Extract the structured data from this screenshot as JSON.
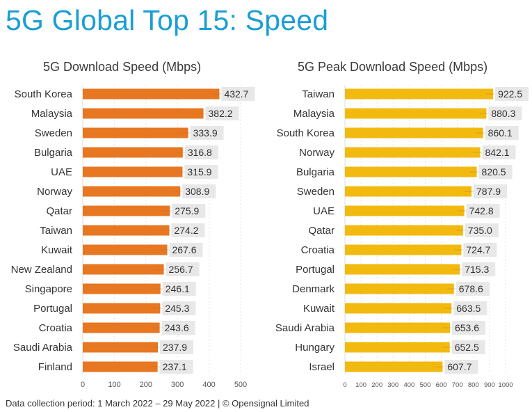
{
  "title": "5G Global Top 15: Speed",
  "footer": "Data collection period: 1 March 2022 – 29 May 2022 |  © Opensignal Limited",
  "colors": {
    "title": "#1a9ed4",
    "download_bar": "#e87722",
    "peak_bar": "#f2b90f",
    "label_bg": "#e8e8e8"
  },
  "chart_data": [
    {
      "type": "bar",
      "orientation": "horizontal",
      "title": "5G Download Speed (Mbps)",
      "xlabel": "",
      "ylabel": "",
      "xlim": [
        0,
        500
      ],
      "xticks": [
        0,
        100,
        200,
        300,
        400,
        500
      ],
      "grid": true,
      "categories": [
        "South Korea",
        "Malaysia",
        "Sweden",
        "Bulgaria",
        "UAE",
        "Norway",
        "Qatar",
        "Taiwan",
        "Kuwait",
        "New Zealand",
        "Singapore",
        "Portugal",
        "Croatia",
        "Saudi Arabia",
        "Finland"
      ],
      "values": [
        432.7,
        382.2,
        333.9,
        316.8,
        315.9,
        308.9,
        275.9,
        274.2,
        267.6,
        256.7,
        246.1,
        245.3,
        243.6,
        237.9,
        237.1
      ],
      "labels": [
        "432.7",
        "382.2",
        "333.9",
        "316.8",
        "315.9",
        "308.9",
        "275.9",
        "274.2",
        "267.6",
        "256.7",
        "246.1",
        "245.3",
        "243.6",
        "237.9",
        "237.1"
      ],
      "color": "#e87722"
    },
    {
      "type": "bar",
      "orientation": "horizontal",
      "title": "5G Peak Download Speed (Mbps)",
      "xlabel": "",
      "ylabel": "",
      "xlim": [
        0,
        1000
      ],
      "xticks": [
        0,
        100,
        200,
        300,
        400,
        500,
        600,
        700,
        800,
        900,
        1000
      ],
      "grid": true,
      "categories": [
        "Taiwan",
        "Malaysia",
        "South Korea",
        "Norway",
        "Bulgaria",
        "Sweden",
        "UAE",
        "Qatar",
        "Croatia",
        "Portugal",
        "Denmark",
        "Kuwait",
        "Saudi Arabia",
        "Hungary",
        "Israel"
      ],
      "values": [
        922.5,
        880.3,
        860.1,
        842.1,
        820.5,
        787.9,
        742.8,
        735.0,
        724.7,
        715.3,
        678.6,
        663.5,
        653.6,
        652.5,
        607.7
      ],
      "labels": [
        "922.5",
        "880.3",
        "860.1",
        "842.1",
        "820.5",
        "787.9",
        "742.8",
        "735.0",
        "724.7",
        "715.3",
        "678.6",
        "663.5",
        "653.6",
        "652.5",
        "607.7"
      ],
      "color": "#f2b90f"
    }
  ]
}
